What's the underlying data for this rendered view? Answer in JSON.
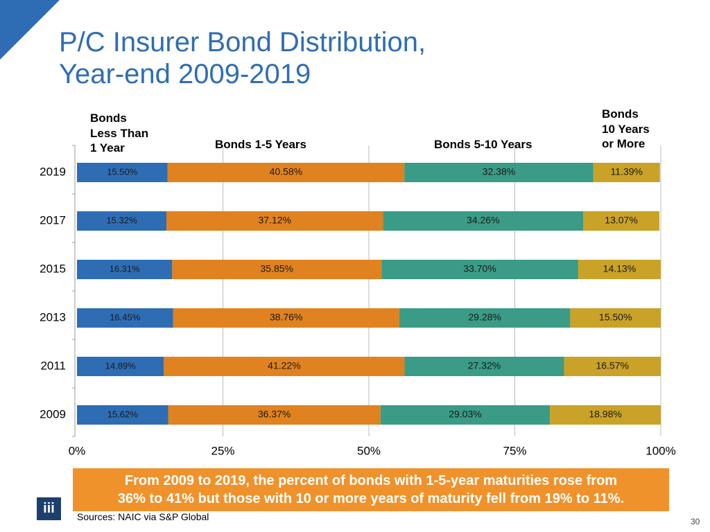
{
  "chart_data": {
    "type": "stacked-barh",
    "title": "P/C Insurer Bond Distribution,\nYear-end 2009-2019",
    "categories": [
      "2019",
      "2017",
      "2015",
      "2013",
      "2011",
      "2009"
    ],
    "series": [
      {
        "name": "Bonds\nLess Than\n1 Year",
        "color": "#2e6db4",
        "values": [
          15.5,
          15.32,
          16.31,
          16.45,
          14.89,
          15.62
        ],
        "value_labels": [
          "15.50%",
          "15.32%",
          "16.31%",
          "16.45%",
          "14.89%",
          "15.62%"
        ]
      },
      {
        "name": "Bonds 1-5 Years",
        "color": "#e0821f",
        "values": [
          40.58,
          37.12,
          35.85,
          38.76,
          41.22,
          36.37
        ],
        "value_labels": [
          "40.58%",
          "37.12%",
          "35.85%",
          "38.76%",
          "41.22%",
          "36.37%"
        ]
      },
      {
        "name": "Bonds 5-10 Years",
        "color": "#3a9b86",
        "values": [
          32.38,
          34.26,
          33.7,
          29.28,
          27.32,
          29.03
        ],
        "value_labels": [
          "32.38%",
          "34.26%",
          "33.70%",
          "29.28%",
          "27.32%",
          "29.03%"
        ]
      },
      {
        "name": "Bonds\n10 Years\nor More",
        "color": "#c9a227",
        "values": [
          11.39,
          13.07,
          14.13,
          15.5,
          16.57,
          18.98
        ],
        "value_labels": [
          "11.39%",
          "13.07%",
          "14.13%",
          "15.50%",
          "16.57%",
          "18.98%"
        ]
      }
    ],
    "xlim": [
      0,
      100
    ],
    "xticks": [
      {
        "value": 0,
        "label": "0%"
      },
      {
        "value": 25,
        "label": "25%"
      },
      {
        "value": 50,
        "label": "50%"
      },
      {
        "value": 75,
        "label": "75%"
      },
      {
        "value": 100,
        "label": "100%"
      }
    ],
    "grid": true,
    "annotation": "From 2009 to 2019, the percent of bonds with 1-5-year maturities rose from\n36% to 41% but those with 10 or more years of maturity fell from 19% to 11%.",
    "source": "Sources:  NAIC via S&P Global",
    "page_number": "30",
    "logo": "iii"
  }
}
